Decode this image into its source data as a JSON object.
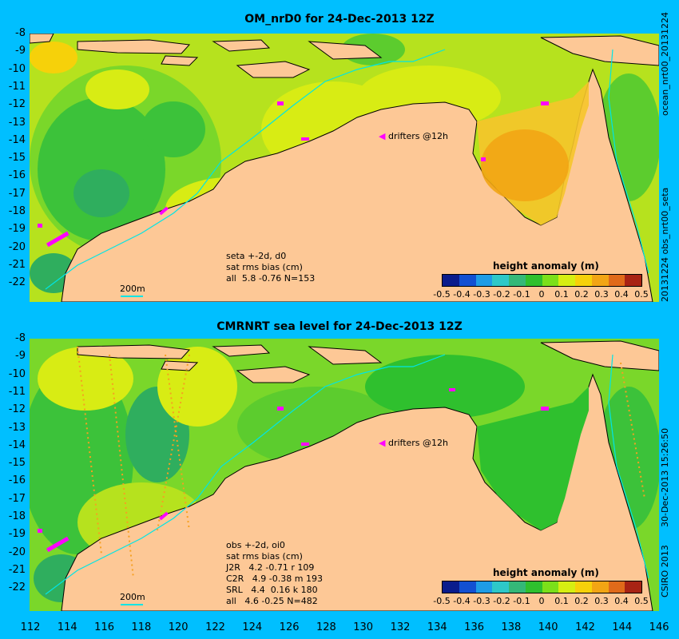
{
  "panel1": {
    "title": "OM_nrD0 for 24-Dec-2013 12Z",
    "notes": [
      "seta +-2d, d0",
      "sat rms bias (cm)",
      "all  5.8 -0.76 N=153"
    ],
    "drifters_label": "drifters @12h",
    "colorbar_title": "height anomaly (m)",
    "scale_label": "200m",
    "side_top": "ocean_nrt00_20131224",
    "side_bottom": "20131224 obs_nrt00_seta"
  },
  "panel2": {
    "title": "CMRNRT sea level  for 24-Dec-2013 12Z",
    "notes": [
      "obs +-2d, oi0",
      "sat rms bias (cm)",
      "J2R   4.2 -0.71 r 109",
      "C2R   4.9 -0.38 m 193",
      "SRL   4.4  0.16 k 180",
      "all   4.6 -0.25 N=482"
    ],
    "drifters_label": "drifters @12h",
    "colorbar_title": "height anomaly (m)",
    "scale_label": "200m",
    "side_top": "30-Dec-2013 15:26:50",
    "side_bottom": "CSIRO 2013"
  },
  "colorbar": {
    "ticks": [
      "-0.5",
      "-0.4",
      "-0.3",
      "-0.2",
      "-0.1",
      "0",
      "0.1",
      "0.2",
      "0.3",
      "0.4",
      "0.5"
    ],
    "colors": [
      "#0a1c8c",
      "#1250d2",
      "#1e9ce6",
      "#2ec8c8",
      "#34b878",
      "#2fc02e",
      "#7be01a",
      "#d6ee12",
      "#f6d10a",
      "#f2a514",
      "#e06a1a",
      "#a82314"
    ]
  },
  "axes": {
    "lat_ticks": [
      "-8",
      "-9",
      "-10",
      "-11",
      "-12",
      "-13",
      "-14",
      "-15",
      "-16",
      "-17",
      "-18",
      "-19",
      "-20",
      "-21",
      "-22"
    ],
    "lon_ticks": [
      "112",
      "114",
      "116",
      "118",
      "120",
      "122",
      "124",
      "126",
      "128",
      "130",
      "132",
      "134",
      "136",
      "138",
      "140",
      "142",
      "144",
      "146"
    ]
  },
  "colors": {
    "land": "#fdc896",
    "coastline": "#000000",
    "isobath": "#00e5e5",
    "drifter": "#ff00ff",
    "background": "#00bfff"
  }
}
